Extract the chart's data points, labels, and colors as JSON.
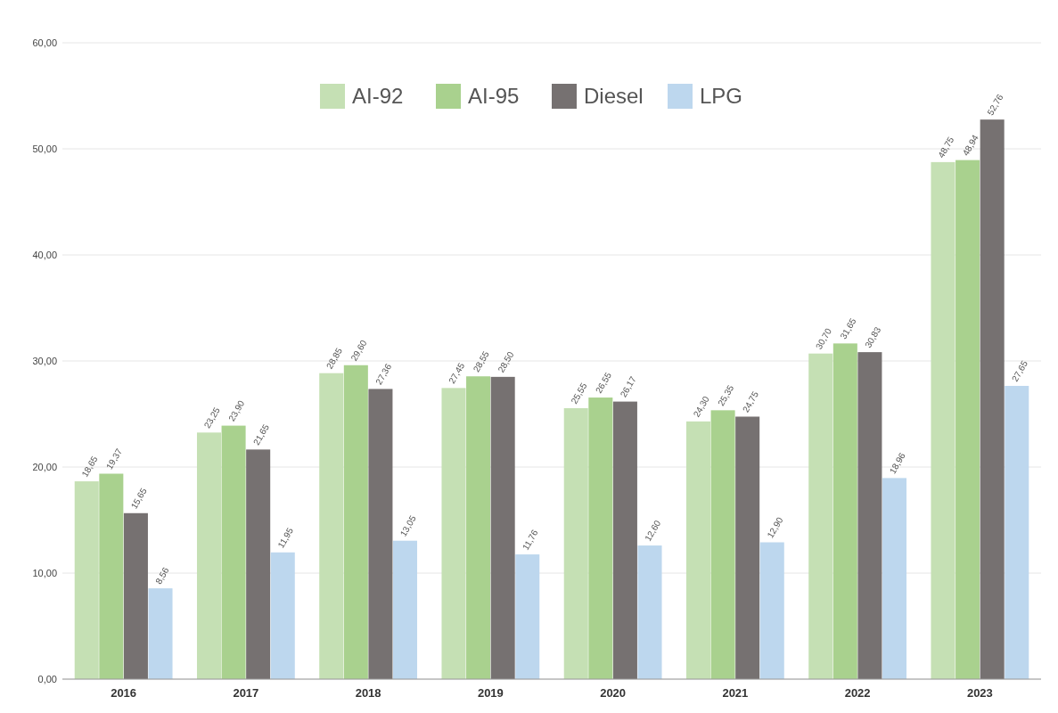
{
  "chart_data": {
    "type": "bar",
    "categories": [
      "2016",
      "2017",
      "2018",
      "2019",
      "2020",
      "2021",
      "2022",
      "2023"
    ],
    "series": [
      {
        "name": "AI-92",
        "color": "#c5e0b4",
        "values": [
          18.65,
          23.25,
          28.85,
          27.45,
          25.55,
          24.3,
          30.7,
          48.75
        ],
        "value_labels": [
          "18,65",
          "23,25",
          "28,85",
          "27,45",
          "25,55",
          "24,30",
          "30,70",
          "48,75"
        ]
      },
      {
        "name": "AI-95",
        "color": "#a9d18e",
        "values": [
          19.37,
          23.9,
          29.6,
          28.55,
          26.55,
          25.35,
          31.65,
          48.94
        ],
        "value_labels": [
          "19,37",
          "23,90",
          "29,60",
          "28,55",
          "26,55",
          "25,35",
          "31,65",
          "48,94"
        ]
      },
      {
        "name": "Diesel",
        "color": "#767171",
        "values": [
          15.65,
          21.65,
          27.36,
          28.5,
          26.17,
          24.75,
          30.83,
          52.76
        ],
        "value_labels": [
          "15,65",
          "21,65",
          "27,36",
          "28,50",
          "26,17",
          "24,75",
          "30,83",
          "52,76"
        ]
      },
      {
        "name": "LPG",
        "color": "#bdd7ee",
        "values": [
          8.56,
          11.95,
          13.05,
          11.76,
          12.6,
          12.9,
          18.96,
          27.65
        ],
        "value_labels": [
          "8,56",
          "11,95",
          "13,05",
          "11,76",
          "12,60",
          "12,90",
          "18,96",
          "27,65"
        ]
      }
    ],
    "ylim": [
      0,
      60
    ],
    "yticks": [
      {
        "value": 0,
        "label": "0,00"
      },
      {
        "value": 10,
        "label": "10,00"
      },
      {
        "value": 20,
        "label": "20,00"
      },
      {
        "value": 30,
        "label": "30,00"
      },
      {
        "value": 40,
        "label": "40,00"
      },
      {
        "value": 50,
        "label": "50,00"
      },
      {
        "value": 60,
        "label": "60,00"
      }
    ],
    "grid": "y",
    "legend": "top"
  }
}
